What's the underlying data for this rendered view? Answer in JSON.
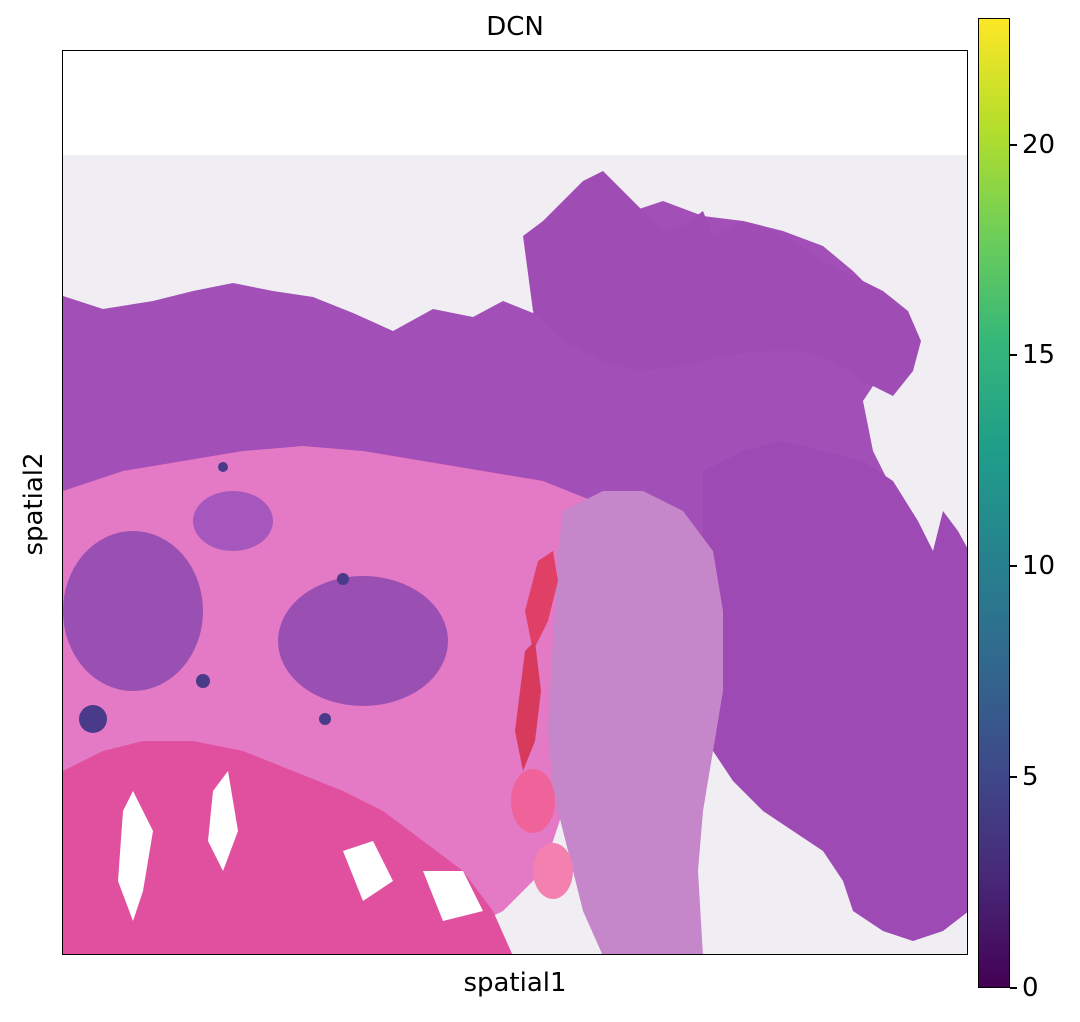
{
  "chart_data": {
    "type": "heatmap",
    "title": "DCN",
    "xlabel": "spatial1",
    "ylabel": "spatial2",
    "colorbar": {
      "colormap": "viridis",
      "range": [
        0,
        23
      ],
      "ticks": [
        0,
        5,
        10,
        15,
        20
      ],
      "tick_labels": [
        "0",
        "5",
        "10",
        "15",
        "20"
      ],
      "colors": [
        "#440154",
        "#482878",
        "#3e4989",
        "#31688e",
        "#26828e",
        "#1f9e89",
        "#35b779",
        "#6ece58",
        "#b5de2b",
        "#fde725"
      ]
    },
    "grid": false,
    "background_image": "H&E stained tissue section",
    "tissue_colors": {
      "blank": "#f0eef3",
      "tumor": "#a24fb8",
      "stroma": "#e779c8",
      "muscle": "#e0509f",
      "blood": "#e04066",
      "nuclei": "#4a3a8a"
    }
  }
}
